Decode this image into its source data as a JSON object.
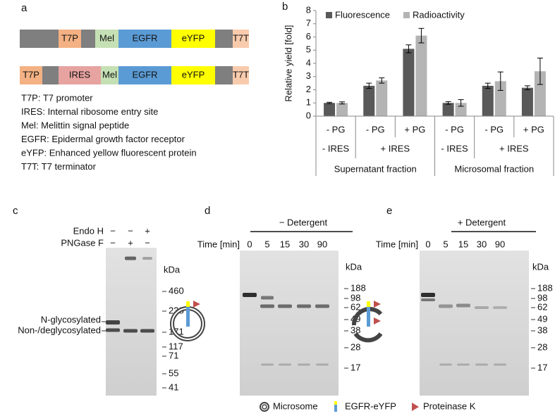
{
  "panel_a": {
    "label": "a",
    "constructs": [
      [
        "T7P",
        "Mel",
        "EGFR",
        "eYFP",
        "T7T"
      ],
      [
        "T7P",
        "IRES",
        "Mel",
        "EGFR",
        "eYFP",
        "T7T"
      ]
    ],
    "legend": [
      "T7P: T7 promoter",
      "IRES: Internal ribosome entry site",
      "Mel: Melittin signal peptide",
      "EGFR: Epidermal growth factor receptor",
      "eYFP: Enhanced yellow fluorescent protein",
      "T7T: T7 terminator"
    ]
  },
  "chart_data": {
    "type": "bar",
    "panel_label": "b",
    "y_label": "Relative yield [fold]",
    "categories": [
      "- PG",
      "- PG",
      "+ PG",
      "- PG",
      "- PG",
      "+ PG"
    ],
    "groups": [
      "- IRES",
      "+ IRES",
      "- IRES",
      "+ IRES"
    ],
    "fractions": [
      "Supernatant fraction",
      "Microsomal fraction"
    ],
    "series": [
      {
        "name": "Fluorescence",
        "color": "#595959",
        "values": [
          1.0,
          2.3,
          5.1,
          1.0,
          2.3,
          2.15
        ],
        "errors": [
          0.05,
          0.2,
          0.3,
          0.1,
          0.2,
          0.15
        ]
      },
      {
        "name": "Radioactivity",
        "color": "#b4b4b4",
        "values": [
          1.0,
          2.7,
          6.1,
          1.0,
          2.65,
          3.4
        ],
        "errors": [
          0.08,
          0.2,
          0.55,
          0.25,
          0.7,
          1.0
        ]
      }
    ],
    "ylim": [
      0,
      8
    ],
    "yticks": [
      0,
      1,
      2,
      3,
      4,
      5,
      6,
      7,
      8
    ],
    "legend": "top"
  },
  "panel_c": {
    "label": "c",
    "rows": [
      {
        "name": "Endo H",
        "signs": [
          "−",
          "−",
          "+"
        ]
      },
      {
        "name": "PNGase F",
        "signs": [
          "−",
          "+",
          "−"
        ]
      }
    ],
    "unit": "kDa",
    "markers": [
      460,
      238,
      171,
      117,
      71,
      55,
      41
    ],
    "band_labels": [
      "N-glycosylated",
      "Non-/deglycosylated"
    ]
  },
  "panel_d": {
    "label": "d",
    "condition": "− Detergent",
    "time_label": "Time [min]",
    "times": [
      0,
      5,
      15,
      30,
      90
    ],
    "unit": "kDa",
    "markers": [
      188,
      98,
      62,
      49,
      38,
      28,
      17
    ]
  },
  "panel_e": {
    "label": "e",
    "condition": "+ Detergent",
    "time_label": "Time [min]",
    "times": [
      0,
      5,
      15,
      30,
      90
    ],
    "unit": "kDa",
    "markers": [
      188,
      98,
      62,
      49,
      38,
      28,
      17
    ]
  },
  "key": [
    "Microsome",
    "EGFR-eYFP",
    "Proteinase K"
  ]
}
